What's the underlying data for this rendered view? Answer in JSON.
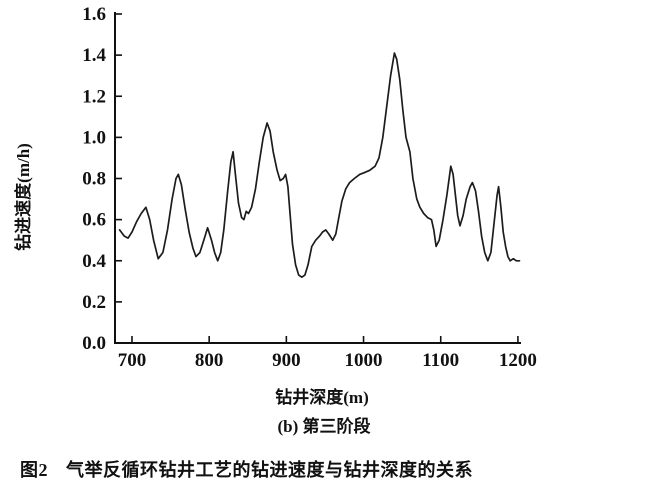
{
  "figure": {
    "caption_number": "图2",
    "caption_text": "气举反循环钻井工艺的钻进速度与钻井深度的关系",
    "subtitle": "(b) 第三阶段"
  },
  "chart_data": {
    "type": "line",
    "title": "",
    "xlabel": "钻井深度(m)",
    "ylabel": "钻进速度(m/h)",
    "xlim": [
      678,
      1204
    ],
    "ylim": [
      0,
      1.6
    ],
    "xticks": [
      700,
      800,
      900,
      1000,
      1100,
      1200
    ],
    "yticks": [
      "0.0",
      "0.2",
      "0.4",
      "0.6",
      "0.8",
      "1.0",
      "1.2",
      "1.4",
      "1.6"
    ],
    "grid": false,
    "legend": "none",
    "line_color": "#1c1c1c",
    "axis_color": "#111111",
    "series": [
      {
        "name": "钻进速度",
        "x": [
          684,
          690,
          695,
          700,
          706,
          712,
          718,
          723,
          728,
          734,
          740,
          746,
          752,
          757,
          760,
          764,
          769,
          774,
          779,
          783,
          788,
          793,
          798,
          803,
          807,
          811,
          815,
          819,
          824,
          828,
          831,
          834,
          838,
          842,
          845,
          848,
          851,
          855,
          860,
          865,
          870,
          875,
          879,
          883,
          888,
          892,
          896,
          899,
          902,
          905,
          908,
          912,
          916,
          920,
          924,
          928,
          933,
          938,
          943,
          947,
          951,
          955,
          960,
          964,
          968,
          972,
          977,
          982,
          988,
          995,
          1002,
          1008,
          1015,
          1020,
          1025,
          1030,
          1035,
          1040,
          1043,
          1047,
          1051,
          1055,
          1060,
          1064,
          1069,
          1073,
          1078,
          1083,
          1088,
          1091,
          1094,
          1098,
          1103,
          1108,
          1113,
          1116,
          1119,
          1122,
          1125,
          1129,
          1133,
          1138,
          1141,
          1145,
          1149,
          1153,
          1157,
          1161,
          1165,
          1169,
          1173,
          1175,
          1178,
          1181,
          1184,
          1187,
          1190,
          1194,
          1198,
          1202
        ],
        "y": [
          0.55,
          0.52,
          0.51,
          0.54,
          0.59,
          0.63,
          0.66,
          0.6,
          0.5,
          0.41,
          0.44,
          0.55,
          0.7,
          0.8,
          0.82,
          0.77,
          0.65,
          0.54,
          0.46,
          0.42,
          0.44,
          0.5,
          0.56,
          0.5,
          0.44,
          0.4,
          0.44,
          0.55,
          0.74,
          0.88,
          0.93,
          0.82,
          0.68,
          0.61,
          0.6,
          0.64,
          0.63,
          0.66,
          0.75,
          0.88,
          1.0,
          1.07,
          1.03,
          0.93,
          0.84,
          0.79,
          0.8,
          0.82,
          0.76,
          0.62,
          0.48,
          0.38,
          0.33,
          0.32,
          0.33,
          0.38,
          0.47,
          0.5,
          0.52,
          0.54,
          0.55,
          0.53,
          0.5,
          0.53,
          0.61,
          0.69,
          0.75,
          0.78,
          0.8,
          0.82,
          0.83,
          0.84,
          0.86,
          0.9,
          1.0,
          1.15,
          1.3,
          1.41,
          1.38,
          1.28,
          1.13,
          1.0,
          0.93,
          0.8,
          0.7,
          0.66,
          0.63,
          0.61,
          0.6,
          0.55,
          0.47,
          0.5,
          0.6,
          0.72,
          0.86,
          0.82,
          0.72,
          0.62,
          0.57,
          0.62,
          0.7,
          0.76,
          0.78,
          0.74,
          0.64,
          0.52,
          0.44,
          0.4,
          0.44,
          0.58,
          0.72,
          0.76,
          0.66,
          0.54,
          0.47,
          0.42,
          0.4,
          0.41,
          0.4,
          0.4
        ]
      }
    ]
  }
}
